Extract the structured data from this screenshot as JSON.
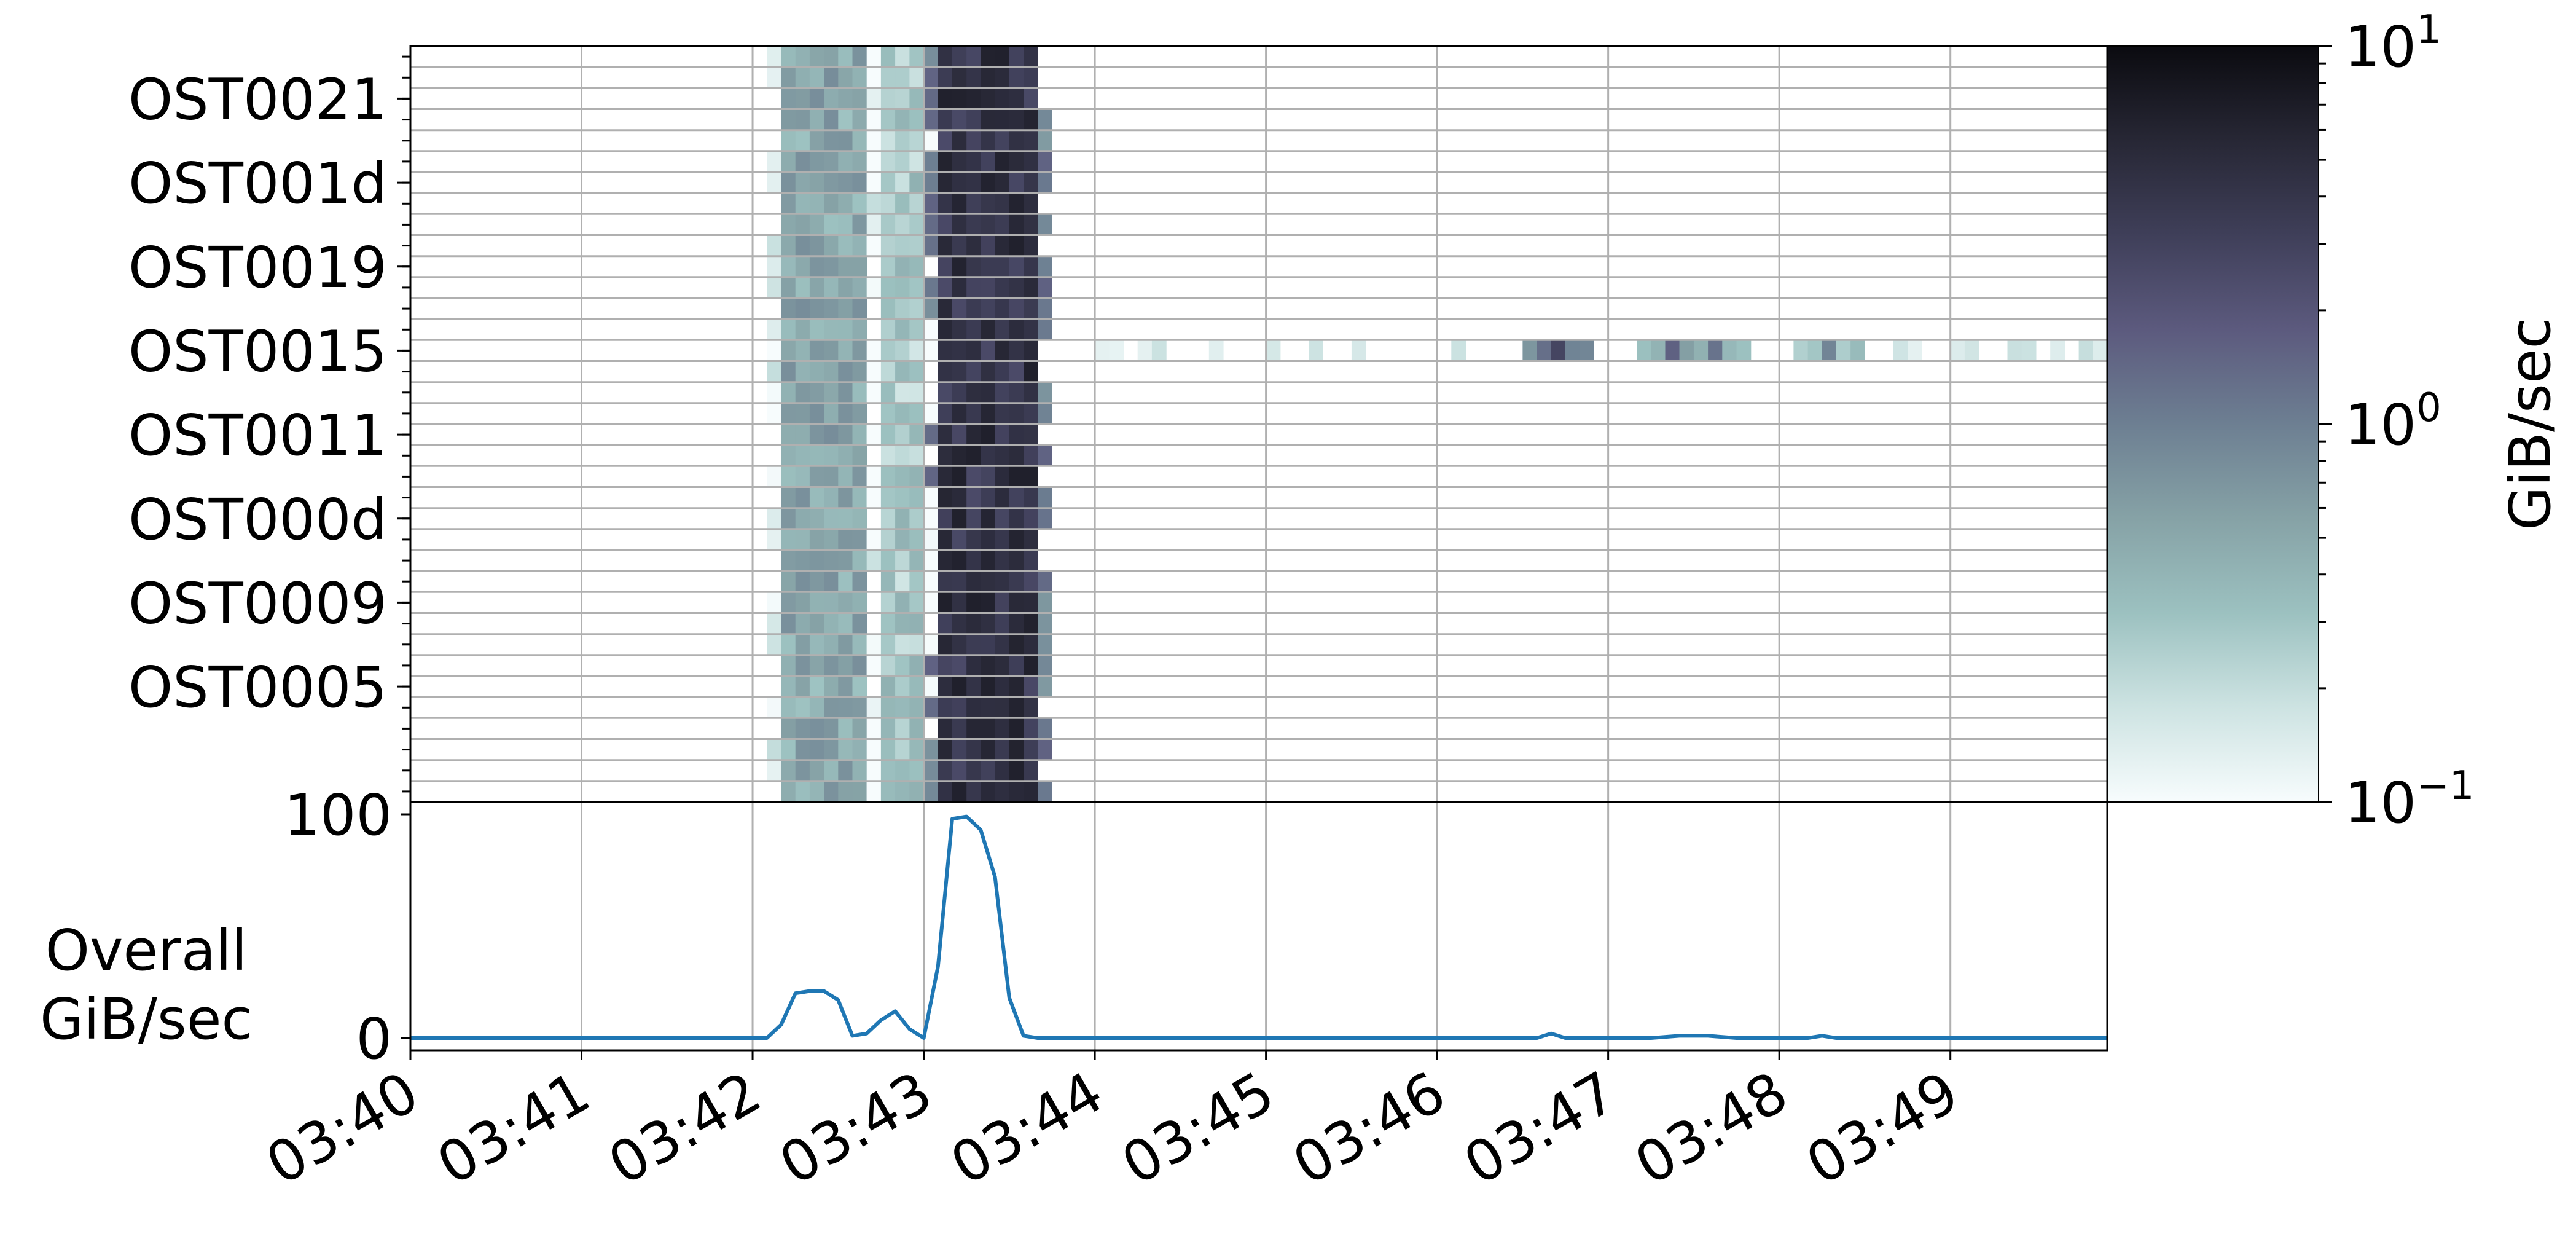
{
  "chart_data": [
    {
      "type": "heatmap",
      "title": "",
      "xlabel": "",
      "ylabel": "",
      "rows": 36,
      "y_tick_labels": [
        "OST0021",
        "OST001d",
        "OST0019",
        "OST0015",
        "OST0011",
        "OST000d",
        "OST0009",
        "OST0005"
      ],
      "x_tick_labels": [
        "03:40",
        "03:41",
        "03:42",
        "03:43",
        "03:44",
        "03:45",
        "03:46",
        "03:47",
        "03:48",
        "03:49"
      ],
      "x_range_minutes": [
        "03:40",
        "03:49:55"
      ],
      "colorbar": {
        "label": "GiB/sec",
        "scale": "log",
        "range": [
          0.1,
          10
        ],
        "tick_labels": [
          {
            "base": "10",
            "exp": "1"
          },
          {
            "base": "10",
            "exp": "0"
          },
          {
            "base": "10",
            "exp": "−1"
          }
        ],
        "colors": [
          "#f7fcfd",
          "#cde3e2",
          "#9cc1c0",
          "#86a2a6",
          "#6d7f92",
          "#5c5a7e",
          "#3f3f59",
          "#272735",
          "#0b0b10"
        ]
      },
      "bands": [
        {
          "start": "03:42:10",
          "end": "03:42:35",
          "gib_per_sec": 0.55
        },
        {
          "start": "03:42:45",
          "end": "03:42:55",
          "gib_per_sec": 0.3
        },
        {
          "start": "03:43:05",
          "end": "03:43:35",
          "gib_per_sec": 4.5
        }
      ],
      "highlighted_row": "OST0015",
      "highlighted_row_events": [
        {
          "time": "03:46:40",
          "gib_per_sec": 2.8
        },
        {
          "time": "03:47:20",
          "gib_per_sec": 1.6
        },
        {
          "time": "03:47:35",
          "gib_per_sec": 1.2
        },
        {
          "time": "03:48:15",
          "gib_per_sec": 0.9
        }
      ],
      "grid": true
    },
    {
      "type": "line",
      "ylabel": "Overall\nGiB/sec",
      "ylabel_lines": [
        "Overall",
        "GiB/sec"
      ],
      "y_tick_labels": [
        "100",
        "0"
      ],
      "ylim": [
        0,
        100
      ],
      "grid": true,
      "color": "#1f77b4",
      "series": [
        {
          "x": [
            "03:40:00",
            "03:42:00",
            "03:42:05",
            "03:42:10",
            "03:42:15",
            "03:42:20",
            "03:42:25",
            "03:42:30",
            "03:42:35",
            "03:42:40",
            "03:42:45",
            "03:42:50",
            "03:42:55",
            "03:43:00",
            "03:43:05",
            "03:43:10",
            "03:43:15",
            "03:43:20",
            "03:43:25",
            "03:43:30",
            "03:43:35",
            "03:43:40",
            "03:46:30",
            "03:46:35",
            "03:46:40",
            "03:46:45",
            "03:47:15",
            "03:47:25",
            "03:47:30",
            "03:47:35",
            "03:47:45",
            "03:48:10",
            "03:48:15",
            "03:48:20",
            "03:49:55"
          ],
          "values": [
            0,
            0,
            0,
            6,
            20,
            21,
            21,
            17,
            1,
            2,
            8,
            12,
            4,
            0,
            32,
            98,
            99,
            93,
            72,
            18,
            1,
            0,
            0,
            0,
            2,
            0,
            0,
            1,
            1,
            1,
            0,
            0,
            1,
            0,
            0
          ]
        }
      ]
    }
  ]
}
